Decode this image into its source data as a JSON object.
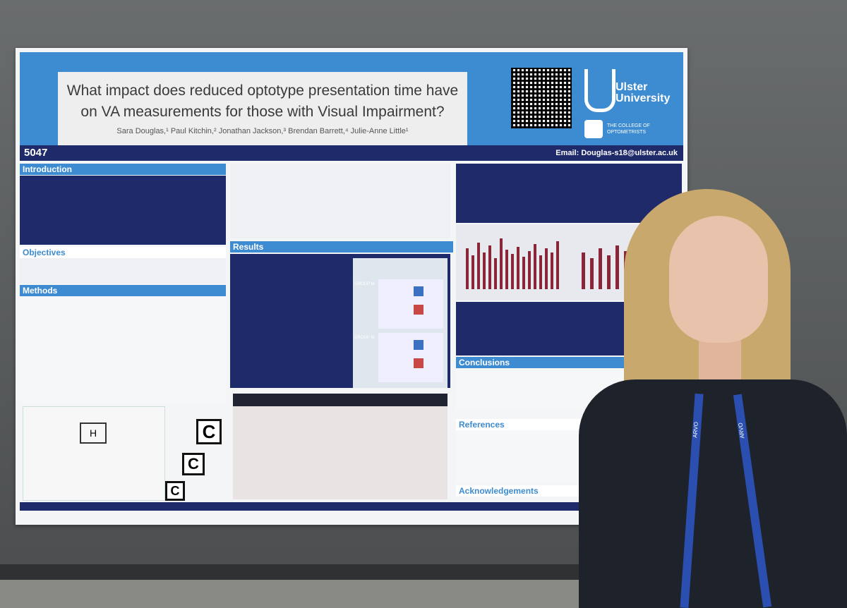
{
  "poster": {
    "title": "What impact does reduced optotype presentation time have on VA measurements for those with Visual Impairment?",
    "authors": "Sara Douglas,¹ Paul Kitchin,² Jonathan Jackson,³ Brendan Barrett,⁴ Julie-Anne Little¹",
    "poster_number": "5047",
    "email": "Email: Douglas-s18@ulster.ac.uk",
    "university": "Ulster University",
    "college": "THE COLLEGE OF OPTOMETRISTS",
    "sections": {
      "introduction": "Introduction",
      "objectives": "Objectives",
      "methods": "Methods",
      "results": "Results",
      "conclusions": "Conclusions",
      "references": "References",
      "acknowledgements": "Acknowledgements"
    },
    "fig_labels": {
      "group_a": "GROUP M",
      "group_b": "GROUP M"
    },
    "letters": [
      "C",
      "C",
      "C"
    ],
    "monitor_letter": "H"
  },
  "lanyard": {
    "text": "ARVO"
  },
  "colors": {
    "poster_blue": "#3d8bd0",
    "poster_navy": "#1f2a6a",
    "bar_maroon": "#8b2638"
  }
}
